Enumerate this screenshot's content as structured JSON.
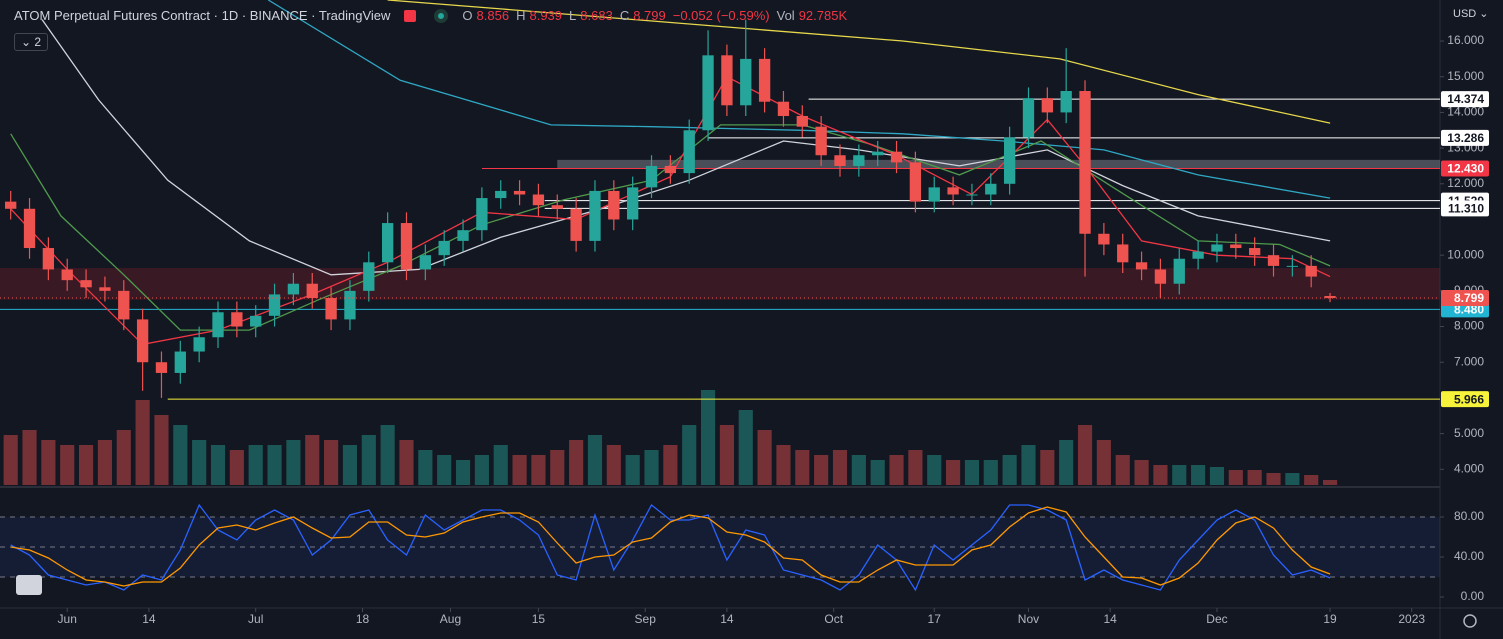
{
  "chart_data": {
    "type": "candlestick",
    "title": "ATOM Perpetual Futures Contract · 1D · BINANCE · TradingView",
    "currency": "USD",
    "indicators_collapsed": 2,
    "legend": {
      "open_label": "O",
      "high_label": "H",
      "low_label": "L",
      "close_label": "C",
      "change": "−0.052 (−0.59%)",
      "volume_label": "Vol",
      "volume_value": "92.785K"
    },
    "up_color": "#26a69a",
    "down_color": "#ef5350",
    "x": [
      1,
      4,
      7,
      10,
      13,
      16,
      19,
      22,
      25,
      28,
      31,
      34,
      37,
      40,
      43,
      46,
      49,
      52,
      55,
      58,
      61,
      64,
      67,
      70,
      73,
      76,
      79,
      82,
      85,
      88,
      91,
      94,
      97,
      100,
      103,
      106,
      109,
      112,
      115,
      118,
      121,
      124,
      127,
      130,
      133,
      136,
      139,
      142,
      145,
      148,
      151,
      154,
      157,
      160,
      163,
      166,
      169,
      172,
      175,
      178,
      181,
      184,
      187,
      190,
      193,
      196,
      199,
      202,
      205,
      208,
      211
    ],
    "open": [
      11.5,
      11.3,
      10.2,
      9.6,
      9.3,
      9.1,
      9.0,
      8.2,
      7.0,
      6.7,
      7.3,
      7.7,
      8.4,
      8.0,
      8.3,
      8.9,
      9.2,
      8.8,
      8.2,
      9.0,
      9.8,
      10.9,
      9.6,
      10.0,
      10.4,
      10.7,
      11.6,
      11.8,
      11.7,
      11.4,
      11.3,
      10.4,
      11.8,
      11.0,
      11.9,
      12.5,
      12.3,
      13.5,
      15.6,
      14.2,
      15.5,
      14.3,
      13.9,
      13.6,
      12.8,
      12.5,
      12.8,
      12.9,
      12.6,
      11.5,
      11.9,
      11.7,
      11.7,
      12.0,
      13.3,
      14.4,
      14.0,
      14.6,
      10.6,
      10.3,
      9.8,
      9.6,
      9.2,
      9.9,
      10.1,
      10.3,
      10.2,
      10.0,
      9.7,
      9.7,
      8.856
    ],
    "high": [
      11.8,
      11.6,
      10.5,
      9.9,
      9.6,
      9.4,
      9.3,
      8.5,
      7.3,
      7.6,
      8.0,
      8.7,
      8.7,
      8.6,
      9.2,
      9.5,
      9.5,
      9.1,
      9.3,
      10.1,
      11.2,
      11.2,
      10.3,
      10.7,
      11.0,
      11.9,
      12.1,
      12.1,
      12.0,
      11.7,
      11.6,
      12.1,
      12.1,
      12.2,
      12.8,
      12.8,
      13.8,
      16.3,
      15.9,
      16.6,
      15.8,
      14.6,
      14.2,
      13.9,
      13.1,
      13.1,
      13.2,
      13.2,
      12.9,
      12.2,
      12.2,
      12.0,
      12.3,
      13.6,
      14.7,
      14.7,
      15.8,
      14.9,
      10.9,
      10.6,
      10.1,
      9.9,
      10.2,
      10.4,
      10.6,
      10.6,
      10.5,
      10.3,
      10.0,
      10.0,
      8.939
    ],
    "low": [
      11.0,
      9.9,
      9.3,
      9.0,
      8.8,
      8.7,
      7.9,
      6.2,
      6.0,
      6.4,
      7.0,
      7.4,
      7.7,
      7.7,
      8.0,
      8.6,
      8.5,
      7.9,
      7.9,
      8.7,
      9.5,
      9.3,
      9.3,
      9.7,
      10.1,
      10.4,
      11.3,
      11.4,
      11.1,
      11.0,
      10.1,
      10.1,
      10.7,
      10.7,
      11.6,
      12.0,
      12.0,
      13.2,
      13.9,
      13.9,
      14.0,
      13.6,
      13.3,
      12.5,
      12.2,
      12.2,
      12.5,
      12.3,
      11.2,
      11.2,
      11.4,
      11.4,
      11.4,
      11.7,
      13.0,
      13.7,
      13.7,
      9.4,
      10.0,
      9.5,
      9.3,
      8.8,
      8.9,
      9.6,
      9.8,
      9.9,
      9.7,
      9.4,
      9.4,
      9.1,
      8.683
    ],
    "close": [
      11.3,
      10.2,
      9.6,
      9.3,
      9.1,
      9.0,
      8.2,
      7.0,
      6.7,
      7.3,
      7.7,
      8.4,
      8.0,
      8.3,
      8.9,
      9.2,
      8.8,
      8.2,
      9.0,
      9.8,
      10.9,
      9.6,
      10.0,
      10.4,
      10.7,
      11.6,
      11.8,
      11.7,
      11.4,
      11.3,
      10.4,
      11.8,
      11.0,
      11.9,
      12.5,
      12.3,
      13.5,
      15.6,
      14.2,
      15.5,
      14.3,
      13.9,
      13.6,
      12.8,
      12.5,
      12.8,
      12.9,
      12.6,
      11.5,
      11.9,
      11.7,
      11.7,
      12.0,
      13.3,
      14.4,
      14.0,
      14.6,
      10.6,
      10.3,
      9.8,
      9.6,
      9.2,
      9.9,
      10.1,
      10.3,
      10.2,
      10.0,
      9.7,
      9.7,
      9.4,
      8.799
    ],
    "volume": [
      925000,
      1017500,
      832500,
      740000,
      740000,
      832500,
      1017500,
      1572500,
      1295000,
      1110000,
      832500,
      740000,
      647500,
      740000,
      740000,
      832500,
      925000,
      832500,
      740000,
      925000,
      1110000,
      832500,
      647500,
      555000,
      462500,
      555000,
      740000,
      555000,
      555000,
      647500,
      832500,
      925000,
      740000,
      555000,
      647500,
      740000,
      1110000,
      1757500,
      1110000,
      1387500,
      1017500,
      740000,
      647500,
      555000,
      647500,
      555000,
      462500,
      555000,
      647500,
      555000,
      462500,
      462500,
      462500,
      555000,
      740000,
      647500,
      832500,
      1110000,
      832500,
      555000,
      462500,
      370000,
      370000,
      370000,
      333000,
      277500,
      277500,
      222000,
      222000,
      185000,
      92785
    ],
    "xlim": [
      -0.7,
      228.5
    ],
    "xticks": [
      {
        "value": 10,
        "label": "Jun"
      },
      {
        "value": 23,
        "label": "14"
      },
      {
        "value": 40,
        "label": "Jul"
      },
      {
        "value": 57,
        "label": "18"
      },
      {
        "value": 71,
        "label": "Aug"
      },
      {
        "value": 85,
        "label": "15"
      },
      {
        "value": 102,
        "label": "Sep"
      },
      {
        "value": 115,
        "label": "14"
      },
      {
        "value": 132,
        "label": "Oct"
      },
      {
        "value": 148,
        "label": "17"
      },
      {
        "value": 163,
        "label": "Nov"
      },
      {
        "value": 176,
        "label": "14"
      },
      {
        "value": 193,
        "label": "Dec"
      },
      {
        "value": 211,
        "label": "19"
      },
      {
        "value": 224,
        "label": "2023"
      }
    ],
    "ylim": [
      3.56,
      17.15
    ],
    "yticks": [
      {
        "value": 16,
        "label": "16.000"
      },
      {
        "value": 15,
        "label": "15.000"
      },
      {
        "value": 14,
        "label": "14.000"
      },
      {
        "value": 13,
        "label": "13.000"
      },
      {
        "value": 12,
        "label": "12.000"
      },
      {
        "value": 10,
        "label": "10.000"
      },
      {
        "value": 9,
        "label": "9.000"
      },
      {
        "value": 8,
        "label": "8.000"
      },
      {
        "value": 7,
        "label": "7.000"
      },
      {
        "value": 5,
        "label": "5.000"
      },
      {
        "value": 4,
        "label": "4.000"
      }
    ],
    "grid": false,
    "moving_averages": [
      {
        "color": "#e6d74b",
        "x": [
          61,
          79,
          111,
          143,
          168,
          190,
          211
        ],
        "values": [
          17.15,
          16.9,
          16.45,
          16.0,
          15.5,
          14.5,
          13.7
        ]
      },
      {
        "color": "#2fa8c4",
        "x": [
          42,
          63,
          87,
          103,
          127,
          143,
          159,
          175,
          190,
          211
        ],
        "values": [
          17.15,
          14.9,
          13.65,
          13.6,
          13.5,
          13.4,
          13.2,
          12.95,
          12.25,
          11.6
        ]
      },
      {
        "color": "#d1d4dc",
        "x": [
          6,
          15,
          26,
          39,
          52,
          66,
          79,
          95,
          109,
          124,
          136,
          152,
          166,
          178,
          190,
          211
        ],
        "values": [
          16.6,
          14.35,
          12.1,
          10.4,
          9.45,
          9.6,
          10.5,
          11.3,
          12.1,
          13.2,
          12.95,
          12.5,
          12.95,
          11.95,
          11.1,
          10.4
        ]
      },
      {
        "color": "#4f9a4c",
        "x": [
          1,
          9,
          19,
          28,
          39,
          50,
          63,
          76,
          89,
          103,
          114,
          127,
          138,
          152,
          165,
          176,
          190,
          203,
          211
        ],
        "values": [
          13.4,
          11.1,
          9.45,
          7.9,
          7.9,
          8.75,
          9.7,
          10.85,
          11.55,
          12.1,
          13.65,
          13.65,
          13.1,
          12.25,
          13.2,
          11.95,
          10.4,
          10.3,
          9.7
        ]
      },
      {
        "color": "#f23645",
        "x": [
          1,
          10,
          22,
          34,
          49,
          61,
          76,
          91,
          106,
          115,
          127,
          142,
          154,
          166,
          172,
          181,
          193,
          205,
          211
        ],
        "values": [
          11.3,
          9.6,
          7.5,
          7.9,
          8.9,
          9.8,
          11.2,
          11.0,
          12.2,
          15.0,
          13.9,
          12.8,
          11.7,
          13.8,
          12.5,
          10.4,
          10.0,
          9.9,
          9.4
        ]
      }
    ],
    "levels": [
      {
        "value": 14.374,
        "color": "#ffffff",
        "start": 128
      },
      {
        "value": 13.286,
        "color": "#ffffff",
        "start": 112
      },
      {
        "value": 12.43,
        "label": "12.430",
        "color": "#f23645",
        "start": 76
      },
      {
        "value": 11.529,
        "color": "#ffffff",
        "start": 86
      },
      {
        "value": 11.31,
        "label": "11.310",
        "color": "#ffffff",
        "start": 86
      },
      {
        "value": 8.48,
        "label": "8.480",
        "color": "#22b5d3",
        "start": -0.7
      },
      {
        "value": 5.966,
        "color": "#f7f23a",
        "start": 26
      }
    ],
    "zones": [
      {
        "from": 8.75,
        "to": 9.64,
        "start": -0.7,
        "color": "rgba(120,30,40,0.38)"
      },
      {
        "from": 12.44,
        "to": 12.67,
        "start": 88,
        "color": "rgba(120,123,134,0.55)"
      }
    ],
    "stoch": {
      "type": "line",
      "ylim": [
        -11,
        109
      ],
      "yticks": [
        {
          "value": 0,
          "label": "0.00"
        },
        {
          "value": 40,
          "label": "40.00"
        },
        {
          "value": 80,
          "label": "80.00"
        }
      ],
      "bands": [
        20,
        50,
        80
      ],
      "series": [
        {
          "color": "#2962ff",
          "values": [
            52,
            42,
            22,
            17,
            12,
            15,
            7,
            22,
            17,
            47,
            92,
            67,
            57,
            77,
            87,
            77,
            42,
            57,
            82,
            87,
            57,
            42,
            82,
            67,
            77,
            87,
            87,
            77,
            62,
            22,
            17,
            82,
            27,
            57,
            92,
            77,
            77,
            82,
            37,
            67,
            62,
            27,
            22,
            17,
            7,
            22,
            52,
            37,
            7,
            52,
            37,
            52,
            67,
            92,
            92,
            87,
            77,
            17,
            27,
            17,
            12,
            7,
            37,
            57,
            77,
            87,
            77,
            42,
            22,
            27,
            19
          ]
        },
        {
          "color": "#ff9800",
          "values": [
            50,
            47,
            39,
            27,
            17,
            15,
            11,
            15,
            15,
            29,
            52,
            69,
            72,
            67,
            74,
            80,
            69,
            59,
            60,
            75,
            75,
            62,
            60,
            64,
            75,
            80,
            84,
            84,
            75,
            54,
            34,
            40,
            42,
            55,
            59,
            75,
            82,
            79,
            65,
            62,
            55,
            39,
            37,
            22,
            15,
            15,
            27,
            37,
            32,
            32,
            32,
            47,
            52,
            70,
            84,
            90,
            85,
            60,
            40,
            20,
            19,
            12,
            19,
            34,
            57,
            74,
            80,
            69,
            47,
            30,
            23
          ]
        }
      ]
    }
  }
}
